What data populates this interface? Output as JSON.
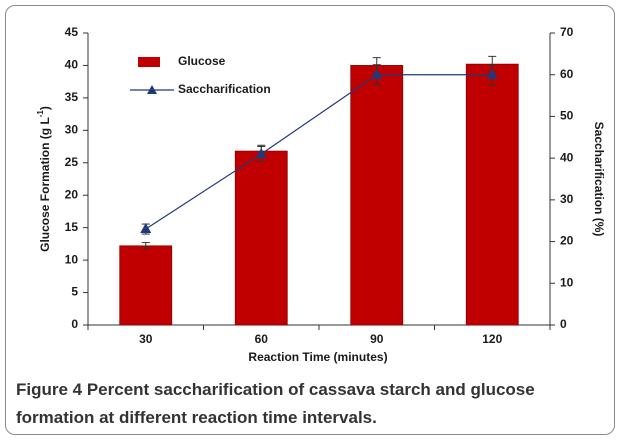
{
  "chart_data": {
    "type": "bar",
    "xlabel": "Reaction Time (minutes)",
    "ylabel": {
      "text": "Glucose Formation  (g L",
      "superscript": "-1",
      "suffix": ")"
    },
    "y2label": "Saccharification (%)",
    "categories": [
      "30",
      "60",
      "90",
      "120"
    ],
    "series": [
      {
        "name": "Glucose",
        "type": "bar",
        "color": "#c00000",
        "values": [
          12.2,
          26.8,
          40.0,
          40.2
        ],
        "errors": [
          0.5,
          0.9,
          1.2,
          1.2
        ]
      },
      {
        "name": "Saccharification",
        "type": "line",
        "axis": "y2",
        "color": "#1f3a7a",
        "values": [
          23,
          41,
          60,
          60
        ],
        "errors": [
          1.2,
          1.8,
          2.4,
          2.4
        ]
      }
    ],
    "ylim": [
      0,
      45
    ],
    "yticks": [
      0,
      5,
      10,
      15,
      20,
      25,
      30,
      35,
      40,
      45
    ],
    "y2lim": [
      0,
      70
    ],
    "y2ticks": [
      0,
      10,
      20,
      30,
      40,
      50,
      60,
      70
    ],
    "legend": "upper left"
  },
  "caption": "Figure 4 Percent saccharification of cassava starch and glucose formation at different reaction time intervals."
}
